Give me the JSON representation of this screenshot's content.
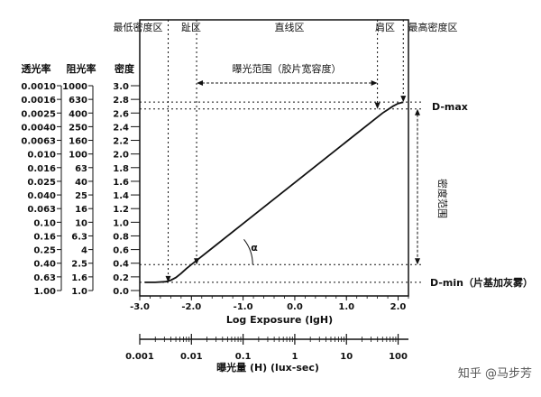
{
  "chart_data": {
    "type": "line",
    "zones": {
      "min_density": "最低密度区",
      "toe": "趾区",
      "linear": "直线区",
      "shoulder": "肩区",
      "max_density": "最高密度区"
    },
    "columns": {
      "transmittance": "透光率",
      "opacity": "阻光率",
      "density": "密度"
    },
    "table_rows": [
      {
        "transmittance": "0.0010",
        "opacity": "1000",
        "density": "3.0"
      },
      {
        "transmittance": "0.0016",
        "opacity": "630",
        "density": "2.8"
      },
      {
        "transmittance": "0.0025",
        "opacity": "400",
        "density": "2.6"
      },
      {
        "transmittance": "0.0040",
        "opacity": "250",
        "density": "2.4"
      },
      {
        "transmittance": "0.0063",
        "opacity": "160",
        "density": "2.2"
      },
      {
        "transmittance": "0.010",
        "opacity": "100",
        "density": "2.0"
      },
      {
        "transmittance": "0.016",
        "opacity": "63",
        "density": "1.8"
      },
      {
        "transmittance": "0.025",
        "opacity": "40",
        "density": "1.6"
      },
      {
        "transmittance": "0.040",
        "opacity": "25",
        "density": "1.4"
      },
      {
        "transmittance": "0.063",
        "opacity": "16",
        "density": "1.2"
      },
      {
        "transmittance": "0.10",
        "opacity": "10",
        "density": "1.0"
      },
      {
        "transmittance": "0.16",
        "opacity": "6.3",
        "density": "0.8"
      },
      {
        "transmittance": "0.25",
        "opacity": "4",
        "density": "0.6"
      },
      {
        "transmittance": "0.40",
        "opacity": "2.5",
        "density": "0.4"
      },
      {
        "transmittance": "0.63",
        "opacity": "1.6",
        "density": "0.2"
      },
      {
        "transmittance": "1.00",
        "opacity": "1.0",
        "density": "0.0"
      }
    ],
    "ylim": [
      0,
      3.0
    ],
    "xlim": [
      -3.0,
      2.2
    ],
    "x_ticks": [
      "-3.0",
      "-2.0",
      "-1.0",
      "0.0",
      "1.0",
      "2.0"
    ],
    "x_tick_values": [
      -3,
      -2,
      -1,
      0,
      1,
      2
    ],
    "xlabel": "Log Exposure (lgH)",
    "exposure_ticks": [
      "0.001",
      "0.01",
      "0.1",
      "1",
      "10",
      "100"
    ],
    "exposure_label": "曝光量 (H) (lux-sec)",
    "series": [
      {
        "x": [
          -2.9,
          -2.7,
          -2.5,
          -2.4,
          -2.3,
          -2.2,
          -2.1,
          -2.0,
          -1.9,
          -1.5,
          -1.0,
          -0.5,
          0.0,
          0.5,
          1.0,
          1.5,
          1.6,
          1.7,
          1.8,
          1.9,
          2.0,
          2.1
        ],
        "y": [
          0.12,
          0.12,
          0.13,
          0.15,
          0.19,
          0.25,
          0.32,
          0.38,
          0.44,
          0.68,
          0.98,
          1.28,
          1.58,
          1.88,
          2.18,
          2.48,
          2.54,
          2.6,
          2.65,
          2.7,
          2.74,
          2.76
        ]
      }
    ],
    "ref_lines": {
      "d_min": 0.12,
      "d_max": 2.76,
      "d_low": 0.38,
      "d_high": 2.66
    },
    "ref_x": {
      "toe_start": -2.45,
      "toe_end": -1.9,
      "shoulder_start": 1.6,
      "shoulder_end": 2.1
    },
    "annotations": {
      "exposure_range": "曝光范围（胶片宽容度）",
      "density_range": "密度范围",
      "alpha": "α",
      "d_max": "D-max",
      "d_min": "D-min（片基加灰雾）"
    },
    "watermark": "知乎 @马步芳"
  }
}
